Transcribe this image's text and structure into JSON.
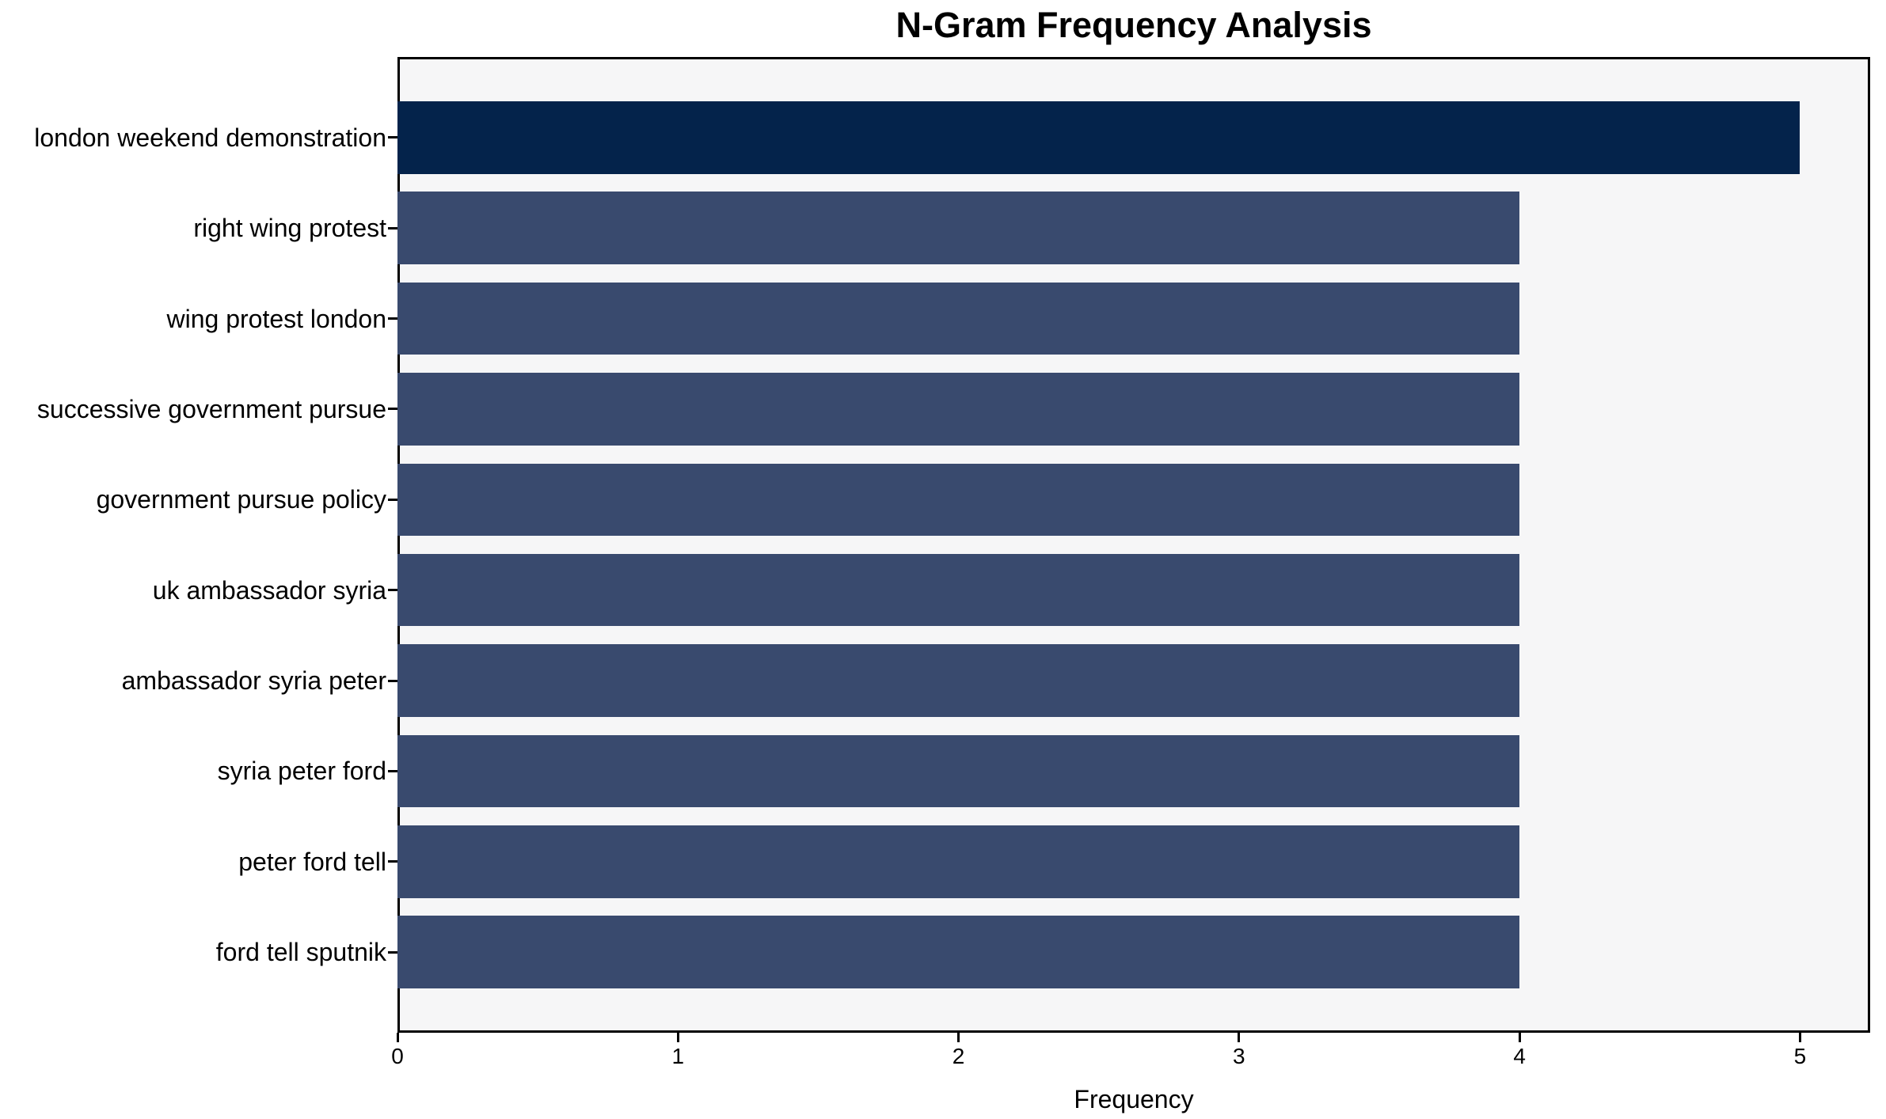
{
  "title": "N-Gram Frequency Analysis",
  "colors": {
    "bar_highlight": "#04234b",
    "bar_default": "#394a6e",
    "plot_background": "#f6f6f7",
    "axis_frame": "#000000",
    "text": "#000000"
  },
  "chart_data": {
    "type": "bar",
    "orientation": "horizontal",
    "title": "N-Gram Frequency Analysis",
    "xlabel": "Frequency",
    "ylabel": "",
    "categories": [
      "london weekend demonstration",
      "right wing protest",
      "wing protest london",
      "successive government pursue",
      "government pursue policy",
      "uk ambassador syria",
      "ambassador syria peter",
      "syria peter ford",
      "peter ford tell",
      "ford tell sputnik"
    ],
    "values": [
      5,
      4,
      4,
      4,
      4,
      4,
      4,
      4,
      4,
      4
    ],
    "bar_colors": [
      "#04234b",
      "#394a6e",
      "#394a6e",
      "#394a6e",
      "#394a6e",
      "#394a6e",
      "#394a6e",
      "#394a6e",
      "#394a6e",
      "#394a6e"
    ],
    "xlim": [
      0,
      5.25
    ],
    "xticks": [
      0,
      1,
      2,
      3,
      4,
      5
    ],
    "xtick_labels": [
      "0",
      "1",
      "2",
      "3",
      "4",
      "5"
    ],
    "grid": false,
    "legend": null,
    "plot_bg": "#f6f6f7",
    "bar_height_fraction": 0.8
  }
}
